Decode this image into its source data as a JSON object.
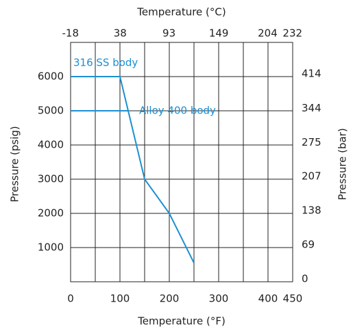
{
  "chart_data": {
    "type": "line",
    "x_label": "Temperature (°F)",
    "x2_label": "Temperature (°C)",
    "y_label": "Pressure (psig)",
    "y2_label": "Pressure (bar)",
    "xlim": [
      0,
      450
    ],
    "xticks": [
      0,
      100,
      200,
      300,
      400,
      450
    ],
    "x_minor_ticks": [
      50,
      150,
      250,
      350
    ],
    "x2lim": [
      -17.8,
      232.2
    ],
    "x2ticks": [
      -18,
      38,
      93,
      149,
      204,
      232
    ],
    "ylim": [
      0,
      7000
    ],
    "yticks": [
      1000,
      2000,
      3000,
      4000,
      5000,
      6000
    ],
    "y2lim": [
      0,
      482.6
    ],
    "y2ticks": [
      0,
      69,
      138,
      207,
      275,
      344,
      414
    ],
    "grid": true,
    "series": [
      {
        "name": "316 SS body",
        "color": "#1b8fd2",
        "x": [
          0,
          100,
          150,
          200,
          250
        ],
        "values": [
          6000,
          6000,
          3000,
          2000,
          550
        ]
      },
      {
        "name": "Alloy 400 body",
        "color": "#1b8fd2",
        "x": [
          0,
          117
        ],
        "values": [
          5000,
          5000
        ]
      }
    ]
  }
}
